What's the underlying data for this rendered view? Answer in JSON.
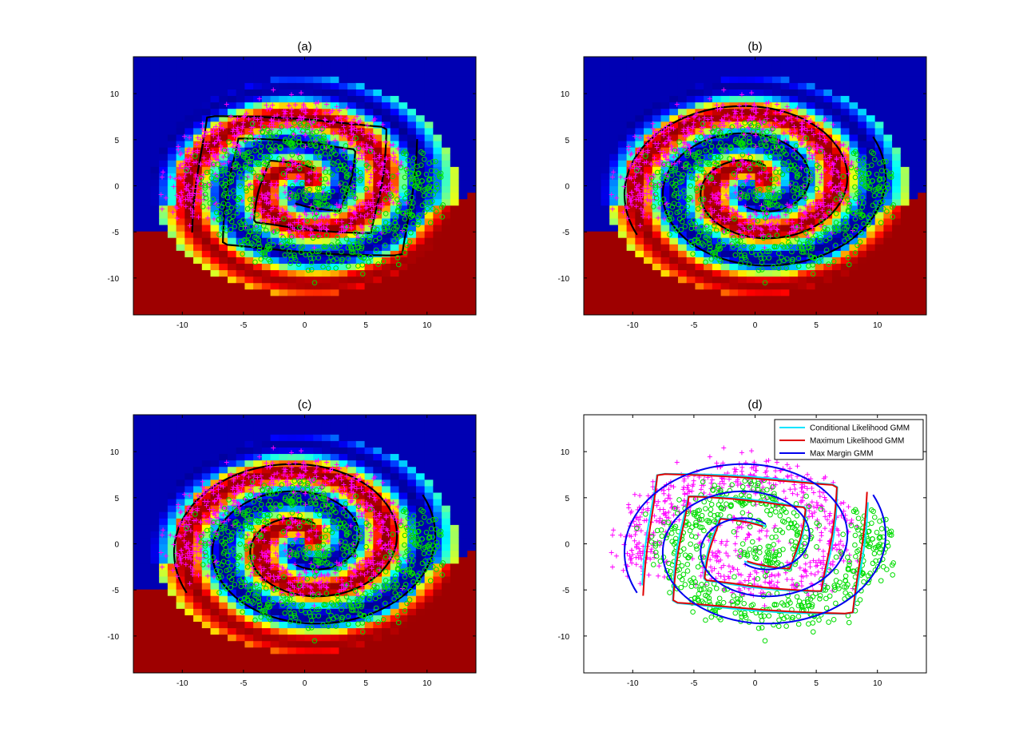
{
  "chart_data": [
    {
      "type": "heatmap",
      "title": "(a)",
      "xlim": [
        -14,
        14
      ],
      "ylim": [
        -14,
        14
      ],
      "xticks": [
        -10,
        -5,
        0,
        5,
        10
      ],
      "yticks": [
        10,
        5,
        0,
        -5,
        -10
      ],
      "colormap": "jet",
      "boundary": "rectangular spiral decision boundary (black contour)",
      "series": [
        {
          "marker": "+",
          "color": "#ff00ff"
        },
        {
          "marker": "o",
          "color": "#00dd00"
        }
      ]
    },
    {
      "type": "heatmap",
      "title": "(b)",
      "xlim": [
        -14,
        14
      ],
      "ylim": [
        -14,
        14
      ],
      "xticks": [
        -10,
        -5,
        0,
        5,
        10
      ],
      "yticks": [
        10,
        5,
        0,
        -5,
        -10
      ],
      "colormap": "jet",
      "boundary": "smooth spiral decision boundary (black contour)",
      "series": [
        {
          "marker": "+",
          "color": "#ff00ff"
        },
        {
          "marker": "o",
          "color": "#00dd00"
        }
      ]
    },
    {
      "type": "heatmap",
      "title": "(c)",
      "xlim": [
        -14,
        14
      ],
      "ylim": [
        -14,
        14
      ],
      "xticks": [
        -10,
        -5,
        0,
        5,
        10
      ],
      "yticks": [
        10,
        5,
        0,
        -5,
        -10
      ],
      "colormap": "jet",
      "boundary": "smooth spiral decision boundary (black contour)",
      "series": [
        {
          "marker": "+",
          "color": "#ff00ff"
        },
        {
          "marker": "o",
          "color": "#00dd00"
        }
      ]
    },
    {
      "type": "scatter",
      "title": "(d)",
      "xlim": [
        -14,
        14
      ],
      "ylim": [
        -14,
        14
      ],
      "xticks": [
        -10,
        -5,
        0,
        5,
        10
      ],
      "yticks": [
        10,
        5,
        0,
        -5,
        -10
      ],
      "legend_position": "top-right",
      "legend": [
        {
          "name": "Conditional Likelihood GMM",
          "color": "#00e5ff"
        },
        {
          "name": "Maximum Likelihood GMM",
          "color": "#e00000"
        },
        {
          "name": "Max Margin GMM",
          "color": "#0000ee"
        }
      ],
      "series": [
        {
          "marker": "+",
          "color": "#ff00ff"
        },
        {
          "marker": "o",
          "color": "#00dd00"
        }
      ]
    }
  ]
}
